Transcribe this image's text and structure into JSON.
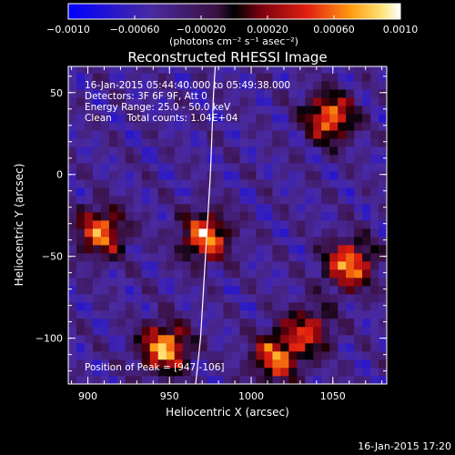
{
  "chart_data": {
    "type": "heatmap",
    "title": "Reconstructed RHESSI Image",
    "xlabel": "Heliocentric X (arcsec)",
    "ylabel": "Heliocentric Y (arcsec)",
    "xlim": [
      888,
      1083
    ],
    "ylim": [
      -128,
      66
    ],
    "x_ticks": [
      900,
      950,
      1000,
      1050
    ],
    "y_ticks": [
      -100,
      -50,
      0,
      50
    ],
    "x_tick_labels": [
      "900",
      "950",
      "1000",
      "1050"
    ],
    "y_tick_labels": [
      "−100",
      "−50",
      "0",
      "50"
    ],
    "colorbar": {
      "range": [
        -0.001,
        0.001
      ],
      "tick_labels": [
        "−0.0010",
        "−0.00060",
        "−0.00020",
        "0.00020",
        "0.00060",
        "0.0010"
      ],
      "tick_values": [
        -0.001,
        -0.0006,
        -0.0002,
        0.0002,
        0.0006,
        0.001
      ],
      "unit_label": "(photons cm⁻² s⁻¹ asec⁻²)"
    },
    "info_lines": [
      "16-Jan-2015 05:44:40.000 to 05:49:38.000",
      "Detectors: 3F 6F 9F, Att 0",
      "Energy Range: 25.0 - 50.0 keV",
      "Clean     Total counts: 1.04E+04"
    ],
    "peak_text": "Position of Peak = [947,-106]",
    "sources": [
      {
        "x": 947,
        "y": -106,
        "amplitude": 0.00095
      },
      {
        "x": 972,
        "y": -38,
        "amplitude": 0.00085
      },
      {
        "x": 908,
        "y": -35,
        "amplitude": 0.00075
      },
      {
        "x": 1060,
        "y": -55,
        "amplitude": 0.00085
      },
      {
        "x": 1048,
        "y": 35,
        "amplitude": 0.0008
      },
      {
        "x": 1015,
        "y": -112,
        "amplitude": 0.0007
      },
      {
        "x": 1035,
        "y": -95,
        "amplitude": 0.00045
      }
    ],
    "limb_line": [
      [
        966,
        -128
      ],
      [
        969,
        -100
      ],
      [
        972,
        -50
      ],
      [
        975,
        0
      ],
      [
        977,
        50
      ],
      [
        978,
        66
      ]
    ],
    "footer_timestamp": "16-Jan-2015 17:20"
  }
}
